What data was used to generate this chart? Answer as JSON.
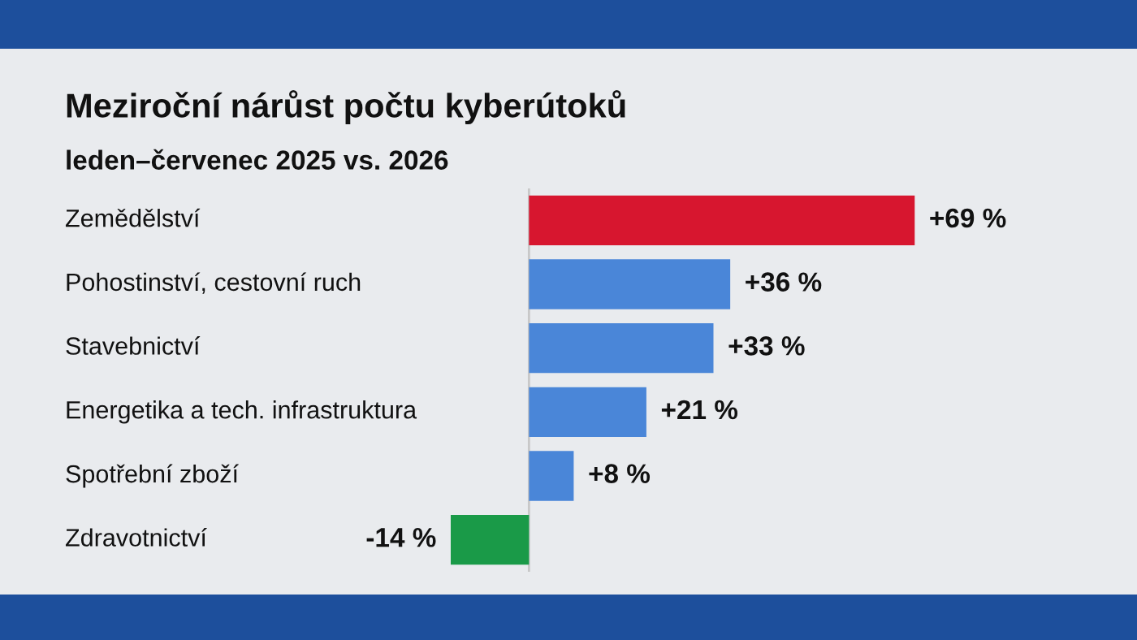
{
  "chart_data": {
    "type": "bar",
    "orientation": "horizontal",
    "title": "Meziroční nárůst počtu kyberútoků",
    "subtitle": "leden–červenec 2025 vs. 2026",
    "categories": [
      "Zemědělství",
      "Pohostinství, cestovní ruch",
      "Stavebnictví",
      "Energetika a tech. infrastruktura",
      "Spotřební zboží",
      "Zdravotnictví"
    ],
    "values": [
      69,
      36,
      33,
      21,
      8,
      -14
    ],
    "colors": [
      "#d7162f",
      "#4a86d8",
      "#4a86d8",
      "#4a86d8",
      "#4a86d8",
      "#1a9a48"
    ],
    "value_labels": [
      "+69 %",
      "+36 %",
      "+33 %",
      "+21 %",
      "+8 %",
      "-14 %"
    ]
  }
}
